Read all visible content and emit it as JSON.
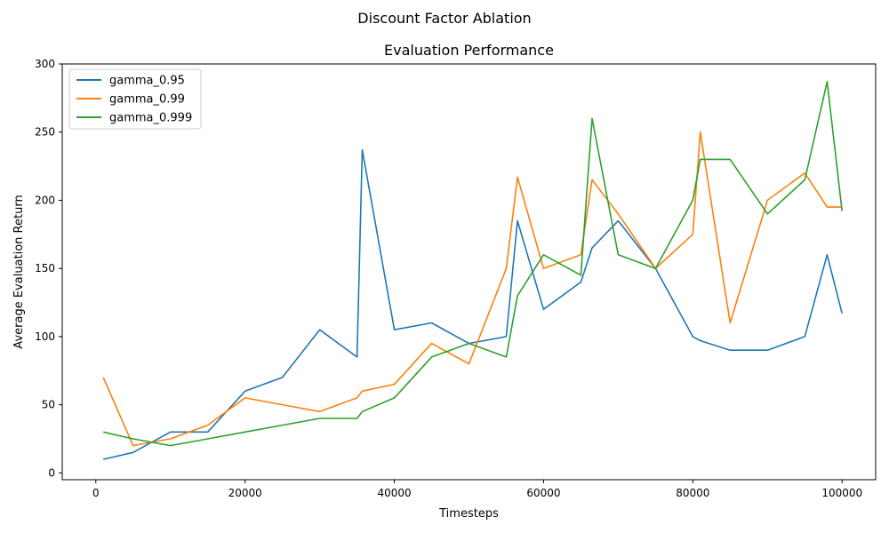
{
  "suptitle": "Discount Factor Ablation",
  "chart_data": {
    "type": "line",
    "title": "Evaluation Performance",
    "xlabel": "Timesteps",
    "ylabel": "Average Evaluation Return",
    "xlim": [
      -4500,
      104500
    ],
    "ylim": [
      -5,
      300
    ],
    "xticks": [
      0,
      20000,
      40000,
      60000,
      80000,
      100000
    ],
    "yticks": [
      0,
      50,
      100,
      150,
      200,
      250,
      300
    ],
    "grid": false,
    "legend_position": "top-left",
    "x": [
      1000,
      5000,
      10000,
      15000,
      20000,
      25000,
      30000,
      35000,
      35700,
      40000,
      45000,
      50000,
      55000,
      56500,
      60000,
      65000,
      66500,
      70000,
      75000,
      80000,
      81000,
      85000,
      90000,
      95000,
      98000,
      100000
    ],
    "series": [
      {
        "name": "gamma_0.95",
        "color": "#1f77b4",
        "values": [
          10,
          15,
          30,
          30,
          60,
          70,
          105,
          85,
          237,
          105,
          110,
          95,
          100,
          185,
          120,
          140,
          165,
          185,
          150,
          100,
          97,
          90,
          90,
          100,
          160,
          117
        ]
      },
      {
        "name": "gamma_0.99",
        "color": "#ff7f0e",
        "values": [
          70,
          20,
          25,
          35,
          55,
          50,
          45,
          55,
          60,
          65,
          95,
          80,
          150,
          217,
          150,
          160,
          215,
          190,
          150,
          175,
          250,
          110,
          200,
          220,
          195,
          195
        ]
      },
      {
        "name": "gamma_0.999",
        "color": "#2ca02c",
        "values": [
          30,
          25,
          20,
          25,
          30,
          35,
          40,
          40,
          45,
          55,
          85,
          95,
          85,
          130,
          160,
          145,
          260,
          160,
          150,
          200,
          230,
          230,
          190,
          215,
          287,
          192
        ]
      }
    ]
  }
}
